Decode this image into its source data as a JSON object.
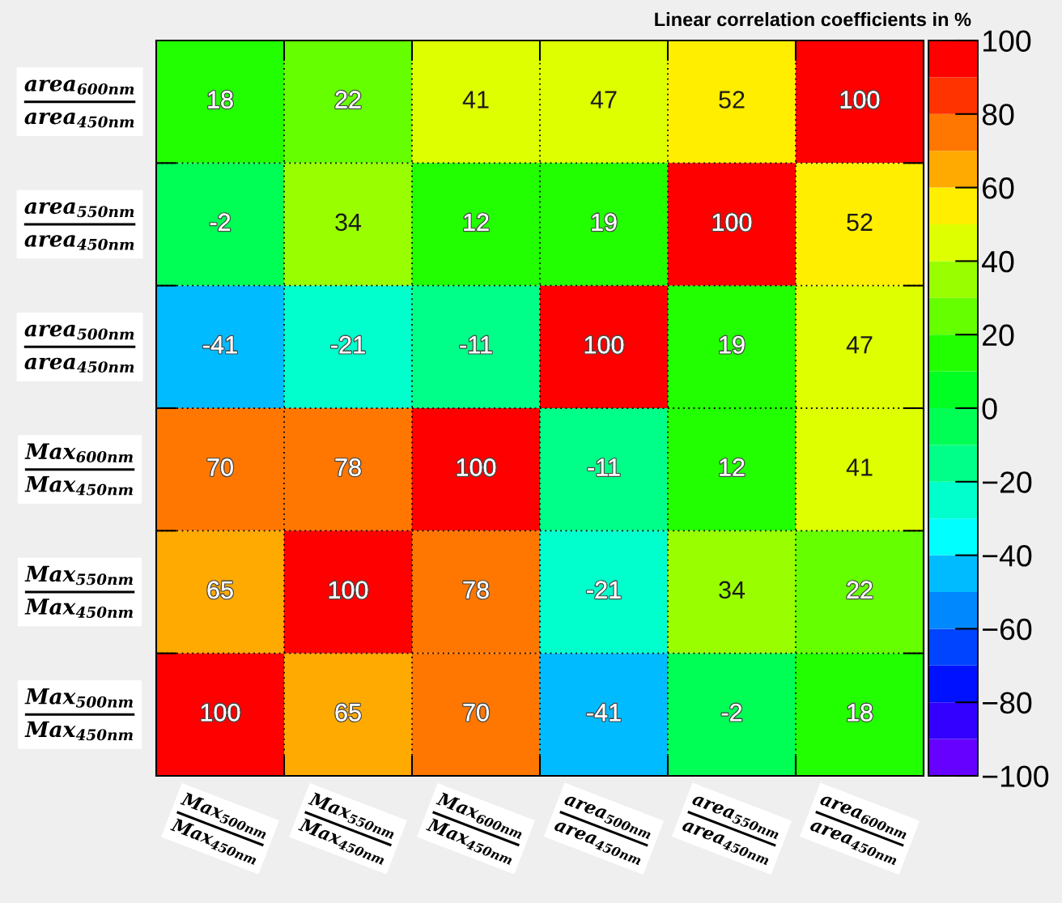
{
  "chart_data": {
    "type": "heatmap",
    "title": "Linear correlation coefficients in %",
    "categories": [
      "Max$_{500nm}$\nMax$_{450nm}$",
      "Max$_{550nm}$\nMax$_{450nm}$",
      "Max$_{600nm}$\nMax$_{450nm}$",
      "area$_{500nm}$\narea$_{450nm}$",
      "area$_{550nm}$\narea$_{450nm}$",
      "area$_{600nm}$\narea$_{450nm}$"
    ],
    "y_categories": [
      "area$_{600nm}$\narea$_{450nm}$",
      "area$_{550nm}$\narea$_{450nm}$",
      "area$_{500nm}$\narea$_{450nm}$",
      "Max$_{600nm}$\nMax$_{450nm}$",
      "Max$_{550nm}$\nMax$_{450nm}$",
      "Max$_{500nm}$\nMax$_{450nm}$"
    ],
    "cells": [
      [
        18,
        22,
        41,
        47,
        52,
        100
      ],
      [
        -2,
        34,
        12,
        19,
        100,
        52
      ],
      [
        -41,
        -21,
        -11,
        100,
        19,
        47
      ],
      [
        70,
        78,
        100,
        -11,
        12,
        41
      ],
      [
        65,
        100,
        78,
        -21,
        34,
        22
      ],
      [
        100,
        65,
        70,
        -41,
        -2,
        18
      ]
    ],
    "clim": [
      -100,
      100
    ],
    "cticks": [
      {
        "value": -100,
        "label": "−100"
      },
      {
        "value": -80,
        "label": "−80"
      },
      {
        "value": -60,
        "label": "−60"
      },
      {
        "value": -40,
        "label": "−40"
      },
      {
        "value": -20,
        "label": "−20"
      },
      0,
      20,
      40,
      60,
      80,
      100
    ],
    "colors": [
      "#6600ff",
      "#3300ff",
      "#0011ff",
      "#0044ff",
      "#0088ff",
      "#00bbff",
      "#00ffff",
      "#00ffcc",
      "#00ff88",
      "#00ff55",
      "#00ff22",
      "#22ff00",
      "#66ff00",
      "#99ff00",
      "#ddff00",
      "#ffee00",
      "#ffaa00",
      "#ff7700",
      "#ff3300",
      "#ff0000"
    ],
    "data_labels": true,
    "grid": true
  }
}
